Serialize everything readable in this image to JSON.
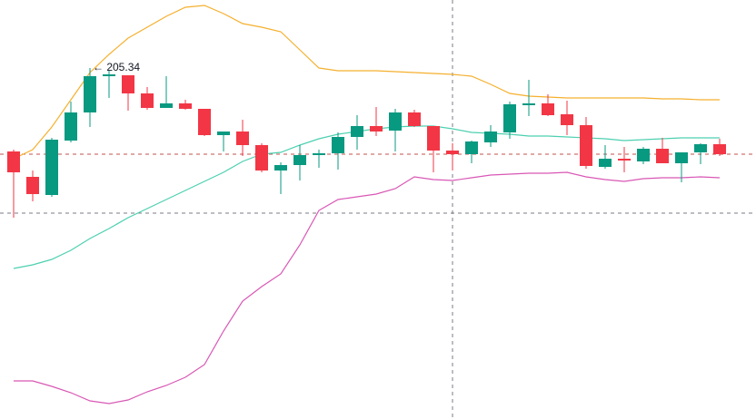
{
  "chart_data": {
    "type": "candlestick",
    "annotation": "← 205.34",
    "ylim": [
      166.64,
      212.84
    ],
    "up_color": "#089981",
    "down_color": "#f23645",
    "open": [
      196.14,
      193.34,
      191.34,
      197.34,
      200.44,
      204.44,
      204.54,
      202.54,
      200.94,
      201.44,
      200.84,
      197.94,
      198.34,
      196.84,
      194.04,
      194.64,
      195.74,
      195.94,
      197.74,
      198.94,
      198.44,
      200.44,
      198.94,
      196.24,
      195.84,
      197.14,
      198.24,
      201.24,
      201.44,
      200.24,
      199.04,
      194.44,
      195.34,
      195.04,
      196.44,
      194.84,
      196.04,
      196.94
    ],
    "high": [
      196.34,
      194.04,
      197.64,
      201.64,
      205.34,
      205.04,
      204.54,
      203.24,
      204.44,
      201.84,
      200.84,
      198.34,
      199.64,
      197.04,
      194.94,
      196.84,
      196.34,
      198.24,
      200.14,
      201.04,
      200.84,
      200.74,
      198.94,
      197.04,
      197.34,
      199.04,
      201.64,
      204.04,
      202.44,
      201.74,
      199.94,
      196.84,
      196.64,
      196.64,
      197.64,
      196.04,
      197.04,
      197.54
    ],
    "low": [
      188.84,
      190.64,
      191.14,
      197.14,
      198.84,
      202.04,
      200.64,
      200.74,
      200.94,
      200.74,
      197.84,
      196.14,
      195.64,
      193.84,
      191.44,
      192.94,
      194.34,
      194.14,
      196.34,
      197.84,
      196.14,
      198.84,
      193.84,
      194.04,
      194.84,
      196.64,
      197.54,
      200.04,
      200.04,
      197.94,
      194.24,
      194.24,
      193.84,
      194.74,
      194.84,
      192.74,
      194.74,
      195.64
    ],
    "close": [
      193.84,
      191.44,
      197.44,
      200.44,
      204.44,
      204.64,
      202.54,
      200.94,
      201.44,
      200.84,
      197.94,
      198.34,
      196.84,
      194.04,
      194.64,
      195.74,
      195.94,
      197.74,
      198.94,
      198.34,
      200.44,
      198.94,
      196.24,
      195.84,
      197.24,
      198.34,
      201.34,
      201.44,
      200.14,
      199.04,
      194.54,
      195.34,
      195.14,
      196.44,
      194.84,
      196.04,
      196.94,
      195.84
    ],
    "bands": [
      {
        "color": "#f5b02e",
        "values": [
          195.34,
          196.34,
          198.84,
          201.84,
          204.84,
          206.84,
          208.64,
          209.84,
          211.04,
          212.04,
          212.24,
          211.34,
          210.24,
          209.84,
          209.34,
          207.34,
          205.34,
          205.04,
          205.04,
          205.04,
          204.94,
          204.84,
          204.74,
          204.64,
          204.44,
          203.54,
          202.54,
          202.24,
          202.14,
          202.04,
          202.04,
          202.04,
          202.04,
          202.04,
          201.94,
          201.94,
          201.84,
          201.84
        ]
      },
      {
        "color": "#4dd0b0",
        "values": [
          183.24,
          183.64,
          184.24,
          185.24,
          186.54,
          187.64,
          188.84,
          189.84,
          190.84,
          191.84,
          192.84,
          193.84,
          195.04,
          195.84,
          196.04,
          196.84,
          197.54,
          198.04,
          198.34,
          198.64,
          198.84,
          198.94,
          198.94,
          198.64,
          198.24,
          198.14,
          198.04,
          197.84,
          197.84,
          197.74,
          197.64,
          197.54,
          197.34,
          197.44,
          197.54,
          197.64,
          197.64,
          197.64
        ]
      },
      {
        "color": "#d957b5",
        "values": [
          170.84,
          170.84,
          170.24,
          169.54,
          168.64,
          168.34,
          168.74,
          169.64,
          170.34,
          171.24,
          172.64,
          176.34,
          179.64,
          181.24,
          182.64,
          185.84,
          189.64,
          190.84,
          191.14,
          191.44,
          192.04,
          193.34,
          193.04,
          192.94,
          193.24,
          193.54,
          193.64,
          193.74,
          193.74,
          193.84,
          193.34,
          193.04,
          192.84,
          193.14,
          193.24,
          193.24,
          193.34,
          193.24
        ]
      }
    ]
  }
}
